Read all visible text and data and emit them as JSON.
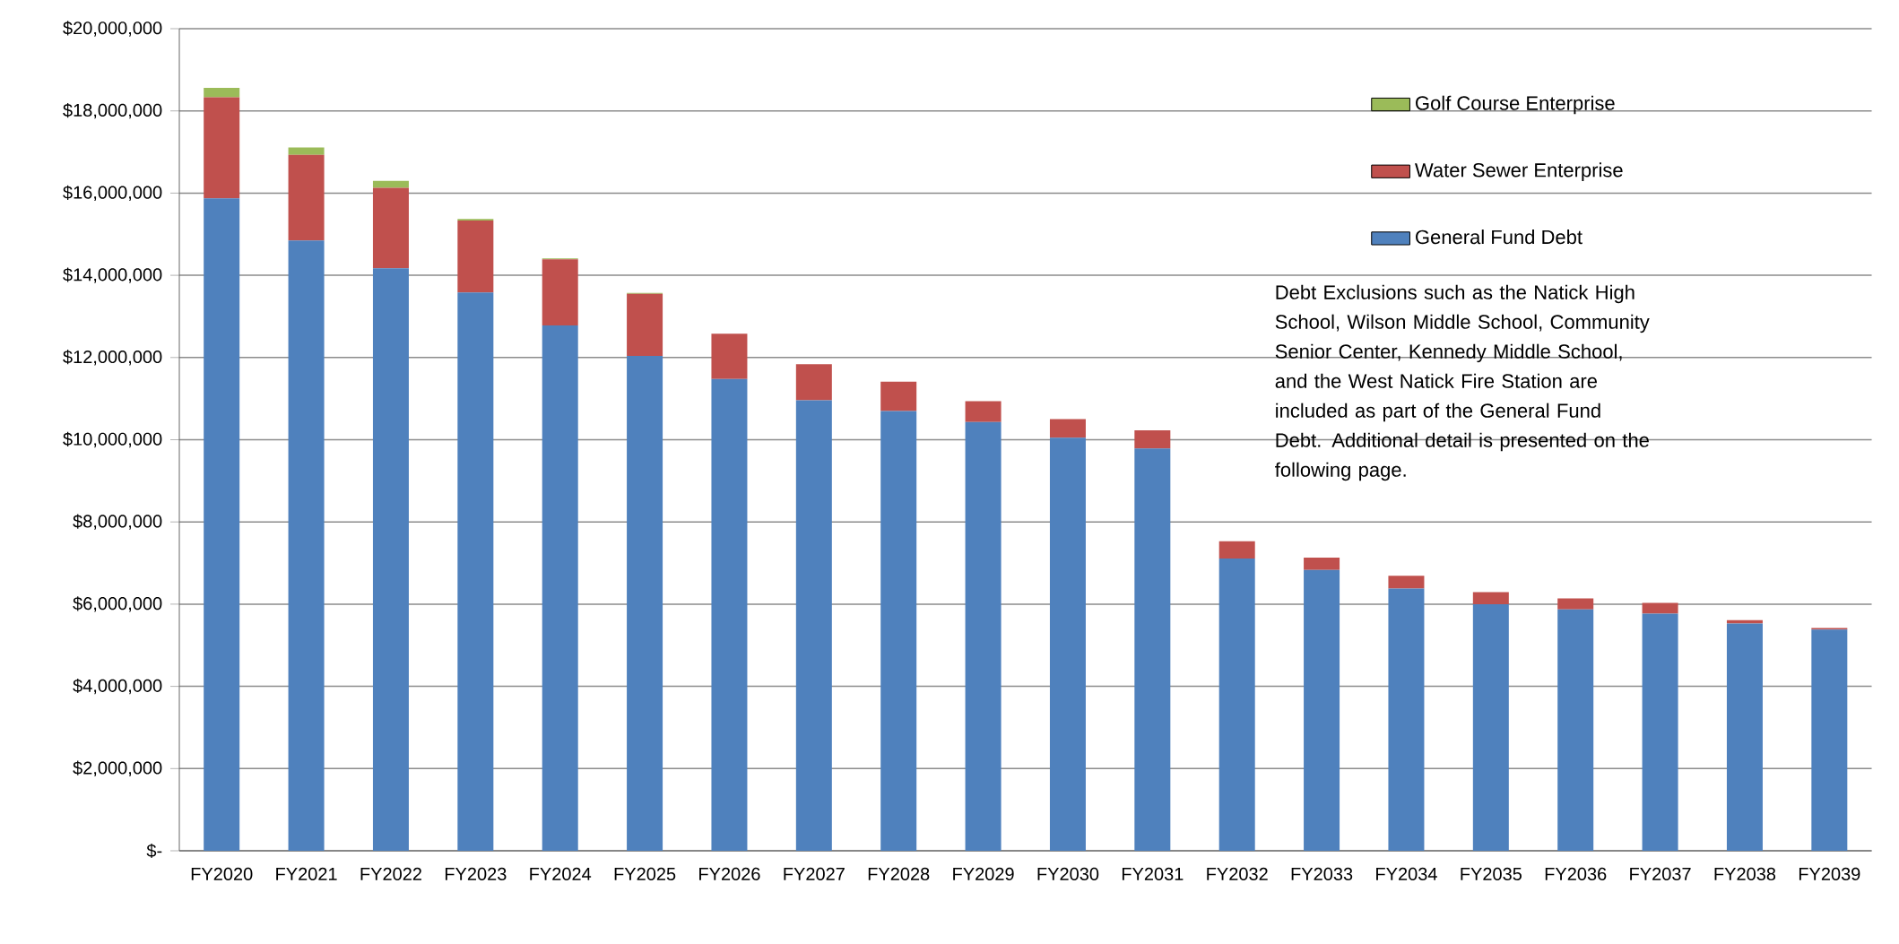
{
  "chart_data": {
    "type": "bar",
    "stacked": true,
    "grid": "y",
    "legend": "top right",
    "categories": [
      "FY2020",
      "FY2021",
      "FY2022",
      "FY2023",
      "FY2024",
      "FY2025",
      "FY2026",
      "FY2027",
      "FY2028",
      "FY2029",
      "FY2030",
      "FY2031",
      "FY2032",
      "FY2033",
      "FY2034",
      "FY2035",
      "FY2036",
      "FY2037",
      "FY2038",
      "FY2039"
    ],
    "series": [
      {
        "name": "General Fund Debt",
        "color": "#4f81bd",
        "values": [
          15870000,
          14850000,
          14170000,
          13580000,
          12780000,
          12040000,
          11480000,
          10960000,
          10700000,
          10430000,
          10050000,
          9790000,
          7110000,
          6830000,
          6380000,
          6000000,
          5870000,
          5770000,
          5530000,
          5380000
        ]
      },
      {
        "name": "Water Sewer Enterprise",
        "color": "#c0504d",
        "values": [
          2460000,
          2080000,
          1960000,
          1750000,
          1610000,
          1510000,
          1100000,
          880000,
          710000,
          510000,
          450000,
          440000,
          420000,
          300000,
          310000,
          290000,
          270000,
          260000,
          80000,
          40000
        ]
      },
      {
        "name": "Golf Course Enterprise",
        "color": "#9bbb59",
        "values": [
          230000,
          180000,
          170000,
          40000,
          20000,
          20000,
          null,
          null,
          null,
          null,
          null,
          null,
          null,
          null,
          null,
          null,
          null,
          null,
          null,
          null
        ]
      }
    ],
    "ylim": [
      0,
      20000000
    ],
    "yticks": [
      {
        "value": 0,
        "label": "$-"
      },
      {
        "value": 2000000,
        "label": "$2,000,000"
      },
      {
        "value": 4000000,
        "label": "$4,000,000"
      },
      {
        "value": 6000000,
        "label": "$6,000,000"
      },
      {
        "value": 8000000,
        "label": "$8,000,000"
      },
      {
        "value": 10000000,
        "label": "$10,000,000"
      },
      {
        "value": 12000000,
        "label": "$12,000,000"
      },
      {
        "value": 14000000,
        "label": "$14,000,000"
      },
      {
        "value": 16000000,
        "label": "$16,000,000"
      },
      {
        "value": 18000000,
        "label": "$18,000,000"
      },
      {
        "value": 20000000,
        "label": "$20,000,000"
      }
    ],
    "annotations": [
      "Debt Exclusions such as the Natick High School, Wilson Middle School, Community Senior Center, Kennedy Middle School, and the West Natick Fire Station are included as part of the General Fund Debt. Additional detail is presented on the following page."
    ]
  }
}
